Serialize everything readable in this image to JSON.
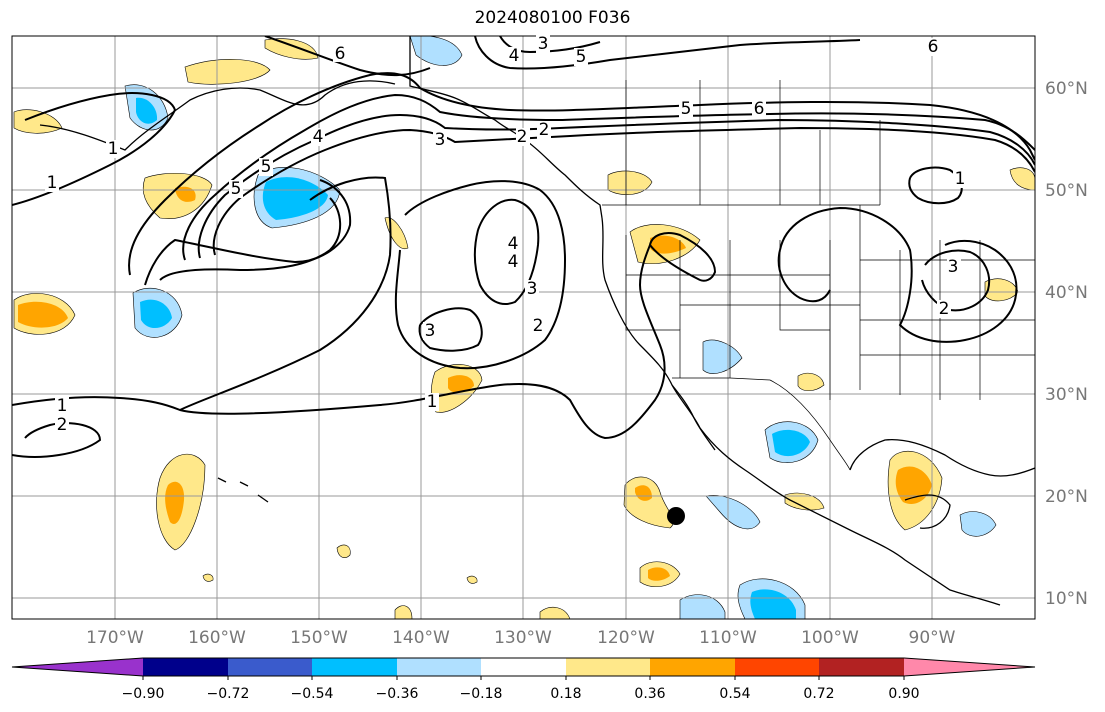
{
  "title": "2024080100 F036",
  "map": {
    "lon_labels": [
      "170°W",
      "160°W",
      "150°W",
      "140°W",
      "130°W",
      "120°W",
      "110°W",
      "100°W",
      "90°W"
    ],
    "lat_labels": [
      "60°N",
      "50°N",
      "40°N",
      "30°N",
      "20°N",
      "10°N"
    ],
    "contour_labels": [
      "6",
      "4",
      "5",
      "3",
      "5",
      "4",
      "5",
      "6",
      "3",
      "2",
      "2",
      "1",
      "1",
      "5",
      "6",
      "4",
      "4",
      "3",
      "3",
      "2",
      "1",
      "1",
      "2",
      "1",
      "3",
      "2"
    ],
    "marker": "black-dot"
  },
  "colorbar": {
    "ticks": [
      "−0.90",
      "−0.72",
      "−0.54",
      "−0.36",
      "−0.18",
      "0.18",
      "0.36",
      "0.54",
      "0.72",
      "0.90"
    ],
    "colors": [
      "#9932cc",
      "#00008b",
      "#3a5bcc",
      "#00bfff",
      "#b0e0ff",
      "#ffffff",
      "#ffe88a",
      "#ffa500",
      "#ff4500",
      "#b22222",
      "#ff88aa"
    ]
  }
}
